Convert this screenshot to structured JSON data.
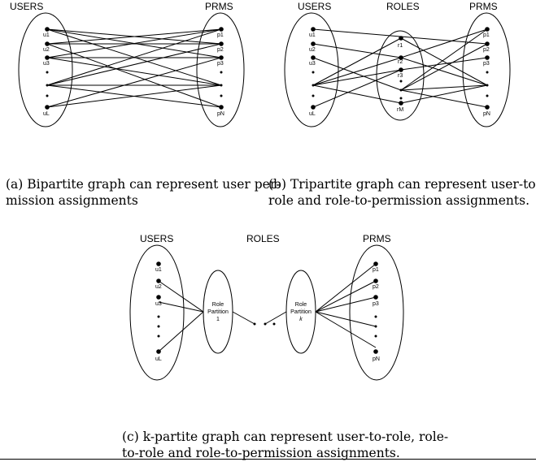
{
  "panels": {
    "a": {
      "users_title": "USERS",
      "prms_title": "PRMS",
      "users": [
        "u1",
        "u2",
        "u3",
        "uL"
      ],
      "prms": [
        "p1",
        "p2",
        "p3",
        "pN"
      ],
      "caption_lines": [
        "(a) Bipartite graph can represent user per-",
        "mission assignments"
      ]
    },
    "b": {
      "users_title": "USERS",
      "roles_title": "ROLES",
      "prms_title": "PRMS",
      "users": [
        "u1",
        "u2",
        "u3",
        "uL"
      ],
      "roles": [
        "r1",
        "r2",
        "r3",
        "rM"
      ],
      "prms": [
        "p1",
        "p2",
        "p3",
        "pN"
      ],
      "caption_lines": [
        "(b) Tripartite graph can represent user-to-",
        "role and role-to-permission assignments."
      ]
    },
    "c": {
      "users_title": "USERS",
      "roles_title": "ROLES",
      "prms_title": "PRMS",
      "users": [
        "u1",
        "u2",
        "u3",
        "uL"
      ],
      "prms": [
        "p1",
        "p2",
        "p3",
        "pN"
      ],
      "partition_1": [
        "Role",
        "Partition",
        "1"
      ],
      "partition_k": [
        "Role",
        "Partition",
        "k"
      ],
      "caption_lines": [
        "(c) k-partite graph can represent user-to-role, role-",
        "to-role and role-to-permission assignments."
      ]
    }
  }
}
